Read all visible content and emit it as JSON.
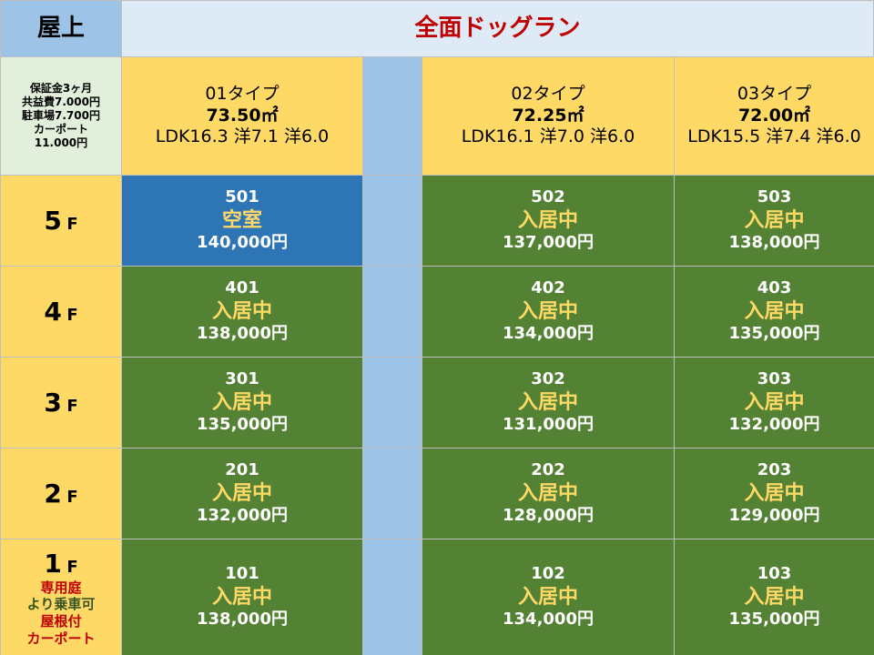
{
  "header": {
    "corner": "屋上",
    "title": "全面ドッグラン"
  },
  "info": {
    "terms": [
      "保証金3ヶ月",
      "共益費7.000円",
      "駐車場7.700円",
      "カーポート",
      "11.000円"
    ]
  },
  "types": [
    {
      "name": "01タイプ",
      "area": "73.50㎡",
      "layout": "LDK16.3 洋7.1 洋6.0"
    },
    {
      "name": "02タイプ",
      "area": "72.25㎡",
      "layout": "LDK16.1 洋7.0 洋6.0"
    },
    {
      "name": "03タイプ",
      "area": "72.00㎡",
      "layout": "LDK15.5 洋7.4 洋6.0"
    }
  ],
  "floors": [
    {
      "number": "5",
      "unit": "F",
      "units": [
        {
          "room": "501",
          "status": "空室",
          "price": "140,000円",
          "vacant": true
        },
        {
          "room": "502",
          "status": "入居中",
          "price": "137,000円"
        },
        {
          "room": "503",
          "status": "入居中",
          "price": "138,000円"
        }
      ]
    },
    {
      "number": "4",
      "unit": "F",
      "units": [
        {
          "room": "401",
          "status": "入居中",
          "price": "138,000円"
        },
        {
          "room": "402",
          "status": "入居中",
          "price": "134,000円"
        },
        {
          "room": "403",
          "status": "入居中",
          "price": "135,000円"
        }
      ]
    },
    {
      "number": "3",
      "unit": "F",
      "units": [
        {
          "room": "301",
          "status": "入居中",
          "price": "135,000円"
        },
        {
          "room": "302",
          "status": "入居中",
          "price": "131,000円"
        },
        {
          "room": "303",
          "status": "入居中",
          "price": "132,000円"
        }
      ]
    },
    {
      "number": "2",
      "unit": "F",
      "units": [
        {
          "room": "201",
          "status": "入居中",
          "price": "132,000円"
        },
        {
          "room": "202",
          "status": "入居中",
          "price": "128,000円"
        },
        {
          "room": "203",
          "status": "入居中",
          "price": "129,000円"
        }
      ]
    },
    {
      "number": "1",
      "unit": "F",
      "notes": [
        "専用庭",
        "より乗車可",
        "屋根付",
        "カーポート"
      ],
      "units": [
        {
          "room": "101",
          "status": "入居中",
          "price": "138,000円"
        },
        {
          "room": "102",
          "status": "入居中",
          "price": "134,000円"
        },
        {
          "room": "103",
          "status": "入居中",
          "price": "135,000円"
        }
      ]
    }
  ]
}
